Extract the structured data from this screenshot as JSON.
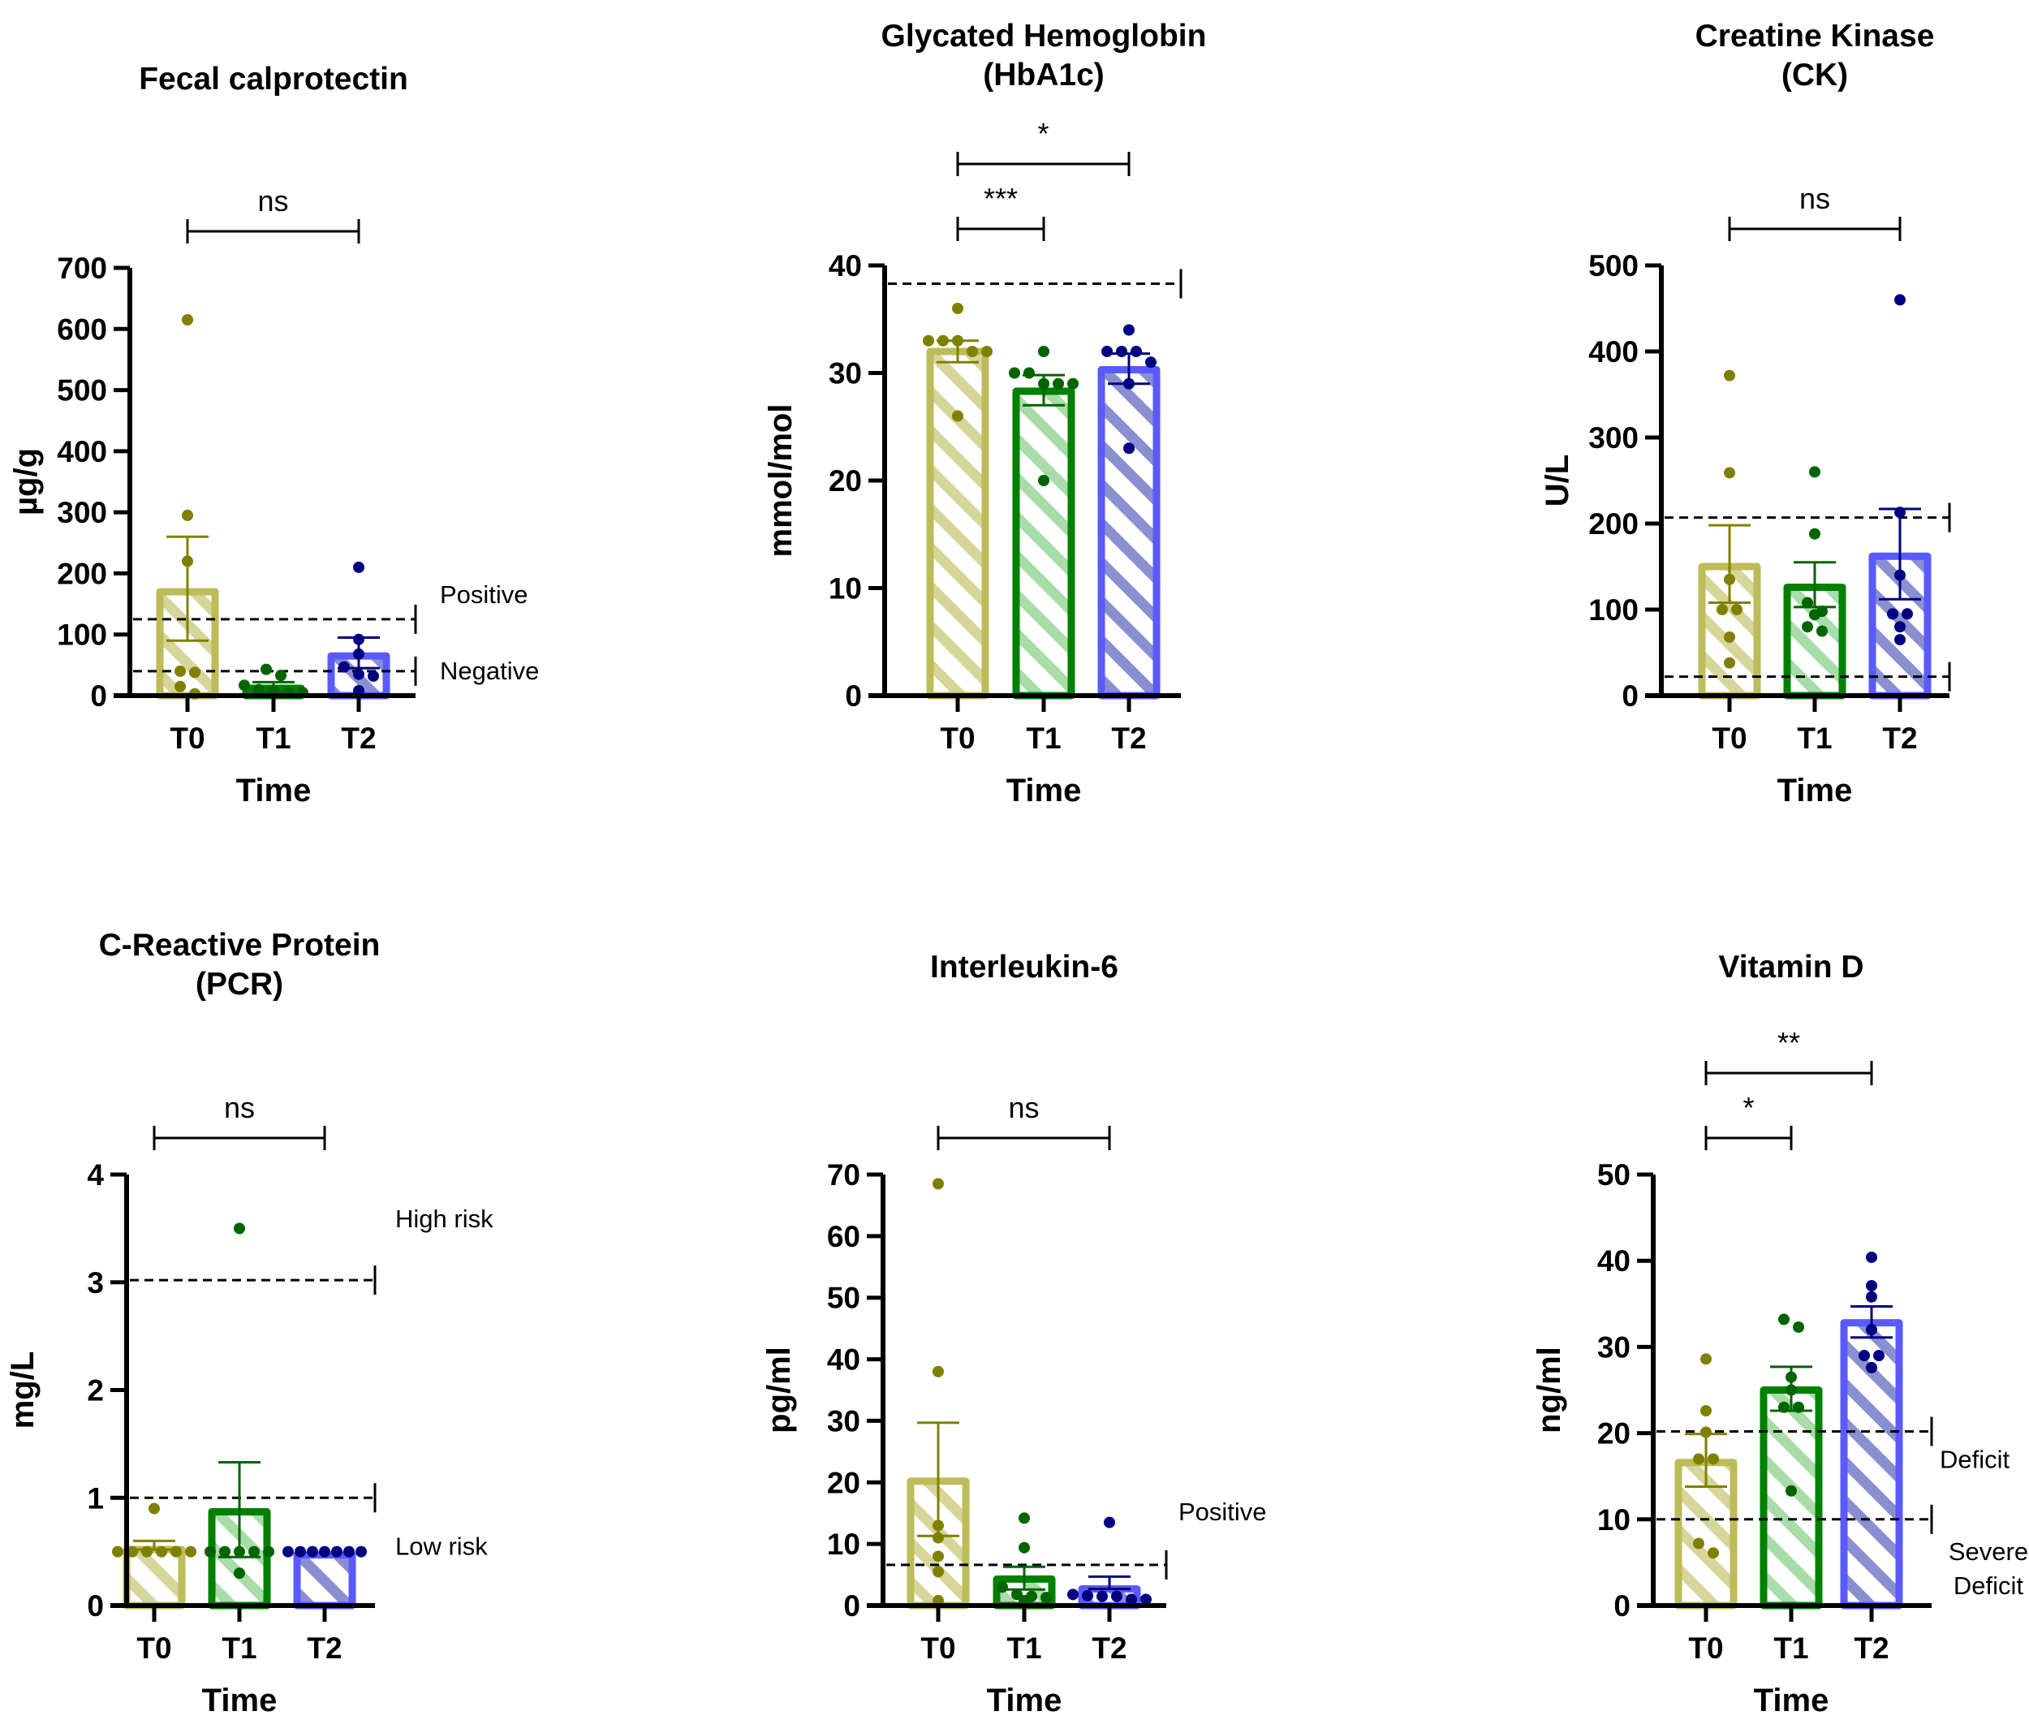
{
  "colors": {
    "T0": {
      "stroke": "#bcbc5a",
      "hatch": "#d6d69a",
      "dot": "#808000"
    },
    "T1": {
      "stroke": "#008000",
      "hatch": "#a8dca8",
      "dot": "#006400"
    },
    "T2": {
      "stroke": "#5a5aff",
      "hatch": "#8a8fd0",
      "dot": "#000080"
    }
  },
  "chart_data": [
    {
      "type": "bar",
      "title_lines": [
        "Fecal calprotectin"
      ],
      "xlabel": "Time",
      "ylabel": "µg/g",
      "categories": [
        "T0",
        "T1",
        "T2"
      ],
      "ylim": [
        0,
        700
      ],
      "yticks": [
        0,
        100,
        200,
        300,
        400,
        500,
        600,
        700
      ],
      "means": [
        170,
        12,
        65
      ],
      "sem_low": [
        90,
        5,
        45
      ],
      "sem_high": [
        260,
        22,
        95
      ],
      "points": [
        [
          615,
          295,
          220,
          40,
          38,
          15,
          3
        ],
        [
          43,
          33,
          17,
          10,
          8,
          5,
          5
        ],
        [
          210,
          92,
          68,
          47,
          35,
          32,
          8
        ]
      ],
      "reference_lines": [
        {
          "value": 125,
          "label": "Positive"
        },
        {
          "value": 40,
          "label": "Negative"
        }
      ],
      "significance": [
        {
          "from": "T0",
          "to": "T2",
          "label": "ns"
        }
      ]
    },
    {
      "type": "bar",
      "title_lines": [
        "Glycated Hemoglobin",
        "(HbA1c)"
      ],
      "xlabel": "Time",
      "ylabel": "mmol/mol",
      "categories": [
        "T0",
        "T1",
        "T2"
      ],
      "ylim": [
        0,
        40
      ],
      "yticks": [
        0,
        10,
        20,
        30,
        40
      ],
      "means": [
        32,
        28.3,
        30.3
      ],
      "sem_low": [
        31,
        27,
        29
      ],
      "sem_high": [
        33,
        29.8,
        31.8
      ],
      "points": [
        [
          36,
          33,
          33,
          33,
          32,
          32,
          26
        ],
        [
          32,
          30,
          30,
          29,
          29,
          29,
          20
        ],
        [
          34,
          32,
          32,
          32,
          31,
          29,
          23
        ]
      ],
      "reference_lines": [
        {
          "value": 38.3,
          "label": ""
        }
      ],
      "significance": [
        {
          "from": "T0",
          "to": "T1",
          "label": "***"
        },
        {
          "from": "T0",
          "to": "T2",
          "label": "*"
        }
      ]
    },
    {
      "type": "bar",
      "title_lines": [
        "Creatine Kinase",
        "(CK)"
      ],
      "xlabel": "Time",
      "ylabel": "U/L",
      "categories": [
        "T0",
        "T1",
        "T2"
      ],
      "ylim": [
        0,
        500
      ],
      "yticks": [
        0,
        100,
        200,
        300,
        400,
        500
      ],
      "means": [
        150,
        126,
        162
      ],
      "sem_low": [
        108,
        103,
        112
      ],
      "sem_high": [
        198,
        155,
        217
      ],
      "points": [
        [
          372,
          259,
          135,
          100,
          100,
          68,
          38
        ],
        [
          260,
          188,
          108,
          98,
          94,
          80,
          75
        ],
        [
          460,
          213,
          140,
          95,
          95,
          80,
          65
        ]
      ],
      "reference_lines": [
        {
          "value": 207,
          "label": ""
        },
        {
          "value": 22,
          "label": ""
        }
      ],
      "significance": [
        {
          "from": "T0",
          "to": "T2",
          "label": "ns"
        }
      ]
    },
    {
      "type": "bar",
      "title_lines": [
        "C-Reactive Protein",
        "(PCR)"
      ],
      "xlabel": "Time",
      "ylabel": "mg/L",
      "categories": [
        "T0",
        "T1",
        "T2"
      ],
      "ylim": [
        0,
        4
      ],
      "yticks": [
        0,
        1,
        2,
        3,
        4
      ],
      "means": [
        0.52,
        0.87,
        0.47
      ],
      "sem_low": [
        0.52,
        0.45,
        0.47
      ],
      "sem_high": [
        0.6,
        1.33,
        0.47
      ],
      "points": [
        [
          0.9,
          0.5,
          0.5,
          0.5,
          0.5,
          0.5,
          0.5
        ],
        [
          3.5,
          0.5,
          0.5,
          0.5,
          0.5,
          0.5,
          0.3
        ],
        [
          0.5,
          0.5,
          0.5,
          0.5,
          0.5,
          0.5,
          0.5
        ]
      ],
      "reference_lines": [
        {
          "value": 3.02,
          "label": "High risk"
        },
        {
          "value": 1.0,
          "label": "Low risk"
        }
      ],
      "significance": [
        {
          "from": "T0",
          "to": "T2",
          "label": "ns"
        }
      ]
    },
    {
      "type": "bar",
      "title_lines": [
        "Interleukin-6"
      ],
      "xlabel": "Time",
      "ylabel": "pg/ml",
      "categories": [
        "T0",
        "T1",
        "T2"
      ],
      "ylim": [
        0,
        70
      ],
      "yticks": [
        0,
        10,
        20,
        30,
        40,
        50,
        60,
        70
      ],
      "means": [
        20.2,
        4.3,
        2.7
      ],
      "sem_low": [
        11.3,
        2.6,
        2.7
      ],
      "sem_high": [
        29.7,
        6.3,
        4.7
      ],
      "points": [
        [
          68.5,
          38,
          13,
          11,
          8,
          5.5,
          0.8
        ],
        [
          14.2,
          9.4,
          3,
          1.8,
          1.5,
          1.3,
          0.8
        ],
        [
          13.5,
          1.8,
          1.6,
          1.5,
          1.5,
          1.0,
          1.0
        ]
      ],
      "reference_lines": [
        {
          "value": 6.6,
          "label": "Positive"
        }
      ],
      "significance": [
        {
          "from": "T0",
          "to": "T2",
          "label": "ns"
        }
      ]
    },
    {
      "type": "bar",
      "title_lines": [
        "Vitamin D"
      ],
      "xlabel": "Time",
      "ylabel": "ng/ml",
      "categories": [
        "T0",
        "T1",
        "T2"
      ],
      "ylim": [
        0,
        50
      ],
      "yticks": [
        0,
        10,
        20,
        30,
        40,
        50
      ],
      "means": [
        16.6,
        25,
        32.8
      ],
      "sem_low": [
        13.8,
        22.6,
        31.1
      ],
      "sem_high": [
        19.9,
        27.7,
        34.7
      ],
      "points": [
        [
          28.6,
          22.6,
          20.1,
          17,
          17,
          7.2,
          6.1
        ],
        [
          33.2,
          32.3,
          26.5,
          25,
          23,
          23,
          13.3
        ],
        [
          40.4,
          37.1,
          35.8,
          32,
          29,
          29,
          27.6
        ]
      ],
      "reference_lines": [
        {
          "value": 20.2,
          "label": "Deficit"
        },
        {
          "value": 10,
          "label": "Severe Deficit"
        }
      ],
      "significance": [
        {
          "from": "T0",
          "to": "T1",
          "label": "*"
        },
        {
          "from": "T0",
          "to": "T2",
          "label": "**"
        }
      ]
    }
  ]
}
